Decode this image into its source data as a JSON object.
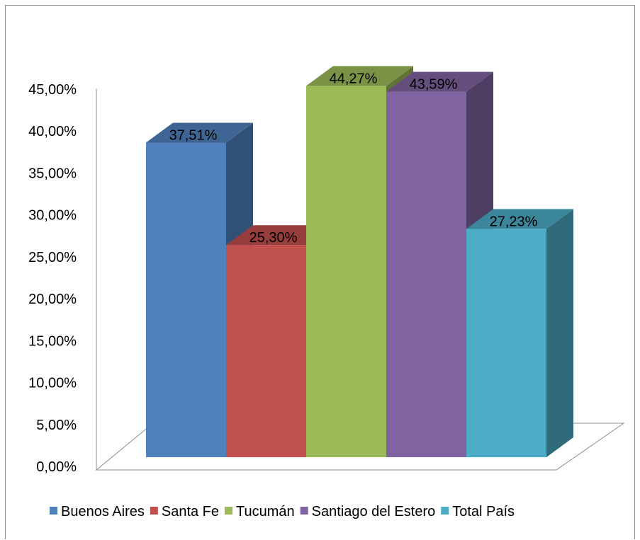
{
  "chart_data": {
    "type": "bar",
    "style": "3d-clustered-column",
    "categories": [
      "Buenos Aires",
      "Santa Fe",
      "Tucumán",
      "Santiago del Estero",
      "Total País"
    ],
    "values": [
      37.51,
      25.3,
      44.27,
      43.59,
      27.23
    ],
    "value_labels": [
      "37,51%",
      "25,30%",
      "44,27%",
      "43,59%",
      "27,23%"
    ],
    "colors": [
      "#4f81bd",
      "#c0504d",
      "#9bbb59",
      "#8064a2",
      "#4bacc6"
    ],
    "ylim": [
      0,
      45
    ],
    "y_ticks": [
      "0,00%",
      "5,00%",
      "10,00%",
      "15,00%",
      "20,00%",
      "25,00%",
      "30,00%",
      "35,00%",
      "40,00%",
      "45,00%"
    ],
    "y_tick_values": [
      0,
      5,
      10,
      15,
      20,
      25,
      30,
      35,
      40,
      45
    ],
    "grid": false,
    "legend_position": "bottom",
    "title": "",
    "xlabel": "",
    "ylabel": ""
  }
}
